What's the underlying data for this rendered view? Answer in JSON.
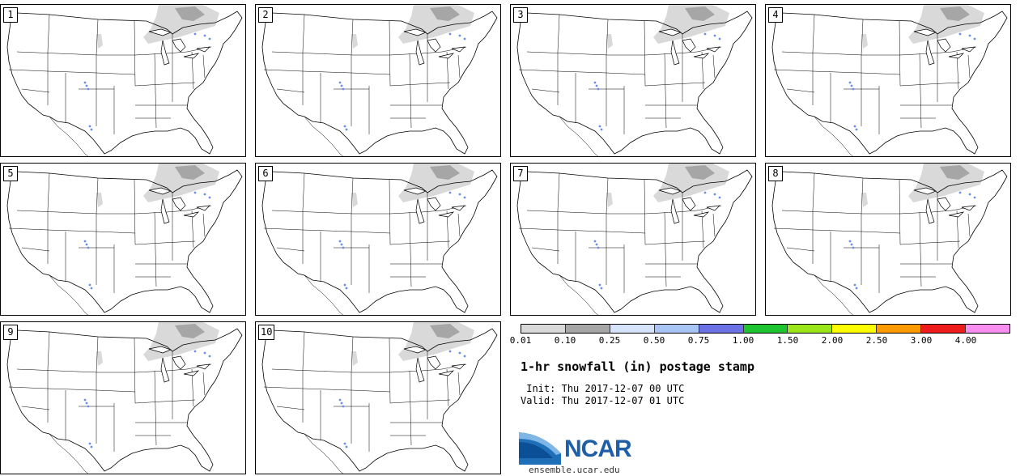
{
  "panels": [
    {
      "label": "1"
    },
    {
      "label": "2"
    },
    {
      "label": "3"
    },
    {
      "label": "4"
    },
    {
      "label": "5"
    },
    {
      "label": "6"
    },
    {
      "label": "7"
    },
    {
      "label": "8"
    },
    {
      "label": "9"
    },
    {
      "label": "10"
    }
  ],
  "colorbar": {
    "colors": [
      "#d9d9d9",
      "#a6a6a6",
      "#d6e4fb",
      "#a8c4f5",
      "#6c72e6",
      "#1fc431",
      "#9ae61a",
      "#ffff00",
      "#ff9a00",
      "#ee1c1c",
      "#f78ef0"
    ],
    "ticks": [
      "0.01",
      "0.10",
      "0.25",
      "0.50",
      "0.75",
      "1.00",
      "1.50",
      "2.00",
      "2.50",
      "3.00",
      "4.00"
    ]
  },
  "title": "1-hr snowfall (in) postage stamp",
  "init": {
    "label": " Init:",
    "value": "Thu 2017-12-07 00 UTC"
  },
  "valid": {
    "label": "Valid:",
    "value": "Thu 2017-12-07 01 UTC"
  },
  "logo": {
    "text": "NCAR",
    "website": "ensemble.ucar.edu"
  }
}
